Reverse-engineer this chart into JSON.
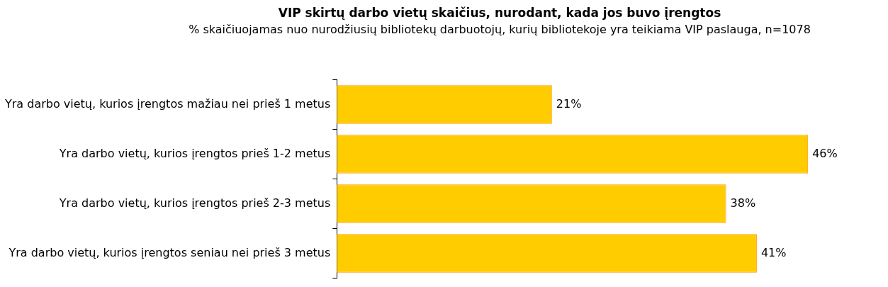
{
  "chart_data": {
    "type": "bar",
    "orientation": "horizontal",
    "title": "VIP skirtų darbo vietų skaičius, nurodant, kada jos buvo įrengtos",
    "subtitle": "% skaičiuojamas nuo nurodžiusių bibliotekų darbuotojų, kurių bibliotekoje yra teikiama VIP paslauga, n=1078",
    "categories": [
      "Yra darbo vietų, kurios įrengtos mažiau nei prieš 1 metus",
      "Yra darbo vietų, kurios įrengtos prieš 1-2 metus",
      "Yra darbo vietų, kurios įrengtos prieš 2-3 metus",
      "Yra darbo vietų, kurios įrengtos seniau nei prieš 3 metus"
    ],
    "values": [
      21,
      46,
      38,
      41
    ],
    "value_labels": [
      "21%",
      "46%",
      "38%",
      "41%"
    ],
    "color": "#ffcc00",
    "grid": false,
    "legend": false
  }
}
